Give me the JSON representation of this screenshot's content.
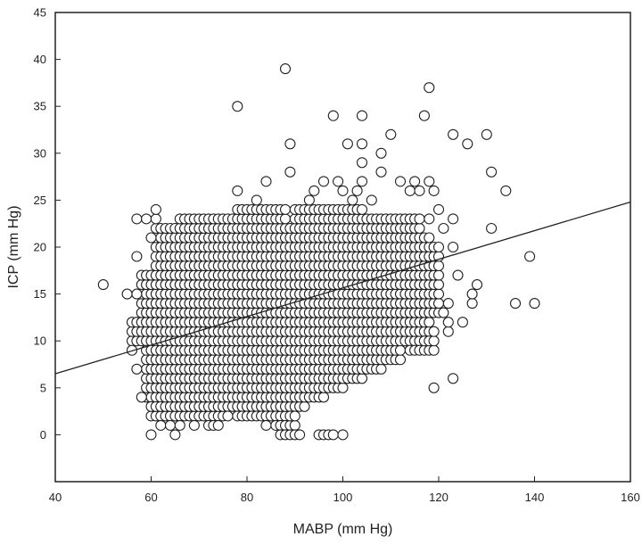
{
  "chart_data": {
    "type": "scatter",
    "title": "",
    "xlabel": "MABP (mm Hg)",
    "ylabel": "ICP (mm Hg)",
    "xlim": [
      40,
      160
    ],
    "ylim": [
      -5,
      45
    ],
    "xticks": [
      "40",
      "60",
      "80",
      "100",
      "120",
      "140",
      "160"
    ],
    "yticks": [
      "0",
      "5",
      "10",
      "15",
      "20",
      "25",
      "30",
      "35",
      "40",
      "45"
    ],
    "grid": false,
    "marker": "open-circle",
    "series": [
      {
        "points": [
          [
            50,
            16
          ],
          [
            55,
            15
          ],
          [
            56,
            9
          ],
          [
            56,
            10
          ],
          [
            57,
            7
          ],
          [
            57,
            19
          ],
          [
            57,
            23
          ],
          [
            57,
            15
          ],
          [
            58,
            12
          ],
          [
            58,
            4
          ],
          [
            58,
            17
          ],
          [
            59,
            23
          ],
          [
            59,
            13
          ],
          [
            60,
            0
          ],
          [
            60,
            21
          ],
          [
            61,
            23
          ],
          [
            61,
            24
          ],
          [
            62,
            1
          ],
          [
            63,
            21
          ],
          [
            64,
            22
          ],
          [
            65,
            0
          ],
          [
            67,
            2
          ],
          [
            69,
            1
          ],
          [
            72,
            1
          ],
          [
            73,
            1
          ],
          [
            74,
            1
          ],
          [
            78,
            35
          ],
          [
            78,
            26
          ],
          [
            80,
            24
          ],
          [
            82,
            25
          ],
          [
            84,
            27
          ],
          [
            86,
            3
          ],
          [
            87,
            0
          ],
          [
            88,
            0
          ],
          [
            88,
            39
          ],
          [
            89,
            0
          ],
          [
            89,
            31
          ],
          [
            89,
            28
          ],
          [
            90,
            0
          ],
          [
            91,
            0
          ],
          [
            93,
            25
          ],
          [
            94,
            26
          ],
          [
            95,
            0
          ],
          [
            96,
            0
          ],
          [
            96,
            27
          ],
          [
            97,
            0
          ],
          [
            98,
            34
          ],
          [
            98,
            0
          ],
          [
            99,
            27
          ],
          [
            100,
            0
          ],
          [
            100,
            26
          ],
          [
            101,
            31
          ],
          [
            102,
            25
          ],
          [
            103,
            26
          ],
          [
            104,
            34
          ],
          [
            104,
            31
          ],
          [
            104,
            29
          ],
          [
            104,
            27
          ],
          [
            106,
            25
          ],
          [
            107,
            9
          ],
          [
            108,
            30
          ],
          [
            108,
            28
          ],
          [
            110,
            32
          ],
          [
            112,
            27
          ],
          [
            113,
            10
          ],
          [
            114,
            26
          ],
          [
            115,
            27
          ],
          [
            115,
            9
          ],
          [
            116,
            26
          ],
          [
            117,
            34
          ],
          [
            118,
            37
          ],
          [
            118,
            27
          ],
          [
            119,
            5
          ],
          [
            119,
            26
          ],
          [
            120,
            24
          ],
          [
            121,
            22
          ],
          [
            122,
            11
          ],
          [
            122,
            14
          ],
          [
            123,
            32
          ],
          [
            123,
            20
          ],
          [
            123,
            6
          ],
          [
            124,
            17
          ],
          [
            125,
            12
          ],
          [
            126,
            31
          ],
          [
            127,
            14
          ],
          [
            127,
            15
          ],
          [
            128,
            16
          ],
          [
            130,
            32
          ],
          [
            131,
            28
          ],
          [
            131,
            22
          ],
          [
            134,
            26
          ],
          [
            136,
            14
          ],
          [
            139,
            19
          ],
          [
            140,
            14
          ],
          [
            92,
            4
          ],
          [
            94,
            5
          ],
          [
            95,
            6
          ],
          [
            98,
            6
          ],
          [
            99,
            6
          ],
          [
            104,
            7
          ],
          [
            106,
            8
          ],
          [
            110,
            10
          ],
          [
            116,
            11
          ],
          [
            117,
            18
          ],
          [
            118,
            23
          ],
          [
            120,
            19
          ],
          [
            121,
            13
          ],
          [
            122,
            12
          ],
          [
            123,
            23
          ],
          [
            62,
            3
          ],
          [
            63,
            2
          ],
          [
            64,
            1
          ],
          [
            66,
            1
          ],
          [
            68,
            3
          ],
          [
            70,
            2
          ],
          [
            76,
            2
          ],
          [
            80,
            2
          ],
          [
            84,
            1
          ],
          [
            91,
            4
          ]
        ],
        "dense_cloud": [
          [
            56,
            10,
            61,
            12
          ],
          [
            58,
            13,
            61,
            17
          ],
          [
            59,
            4,
            62,
            10
          ],
          [
            60,
            2,
            64,
            8
          ],
          [
            61,
            10,
            64,
            22
          ],
          [
            63,
            2,
            68,
            22
          ],
          [
            66,
            2,
            75,
            23
          ],
          [
            72,
            3,
            80,
            23
          ],
          [
            76,
            3,
            86,
            22
          ],
          [
            78,
            2,
            88,
            24
          ],
          [
            84,
            3,
            92,
            22
          ],
          [
            86,
            1,
            90,
            5
          ],
          [
            88,
            4,
            96,
            22
          ],
          [
            90,
            5,
            100,
            24
          ],
          [
            94,
            6,
            104,
            24
          ],
          [
            98,
            7,
            108,
            23
          ],
          [
            102,
            8,
            112,
            22
          ],
          [
            106,
            10,
            116,
            23
          ],
          [
            110,
            11,
            118,
            21
          ],
          [
            112,
            13,
            120,
            20
          ],
          [
            114,
            9,
            119,
            11
          ]
        ]
      }
    ],
    "trendline": {
      "type": "linear",
      "x": [
        40,
        160
      ],
      "y": [
        6.5,
        24.8
      ]
    }
  }
}
